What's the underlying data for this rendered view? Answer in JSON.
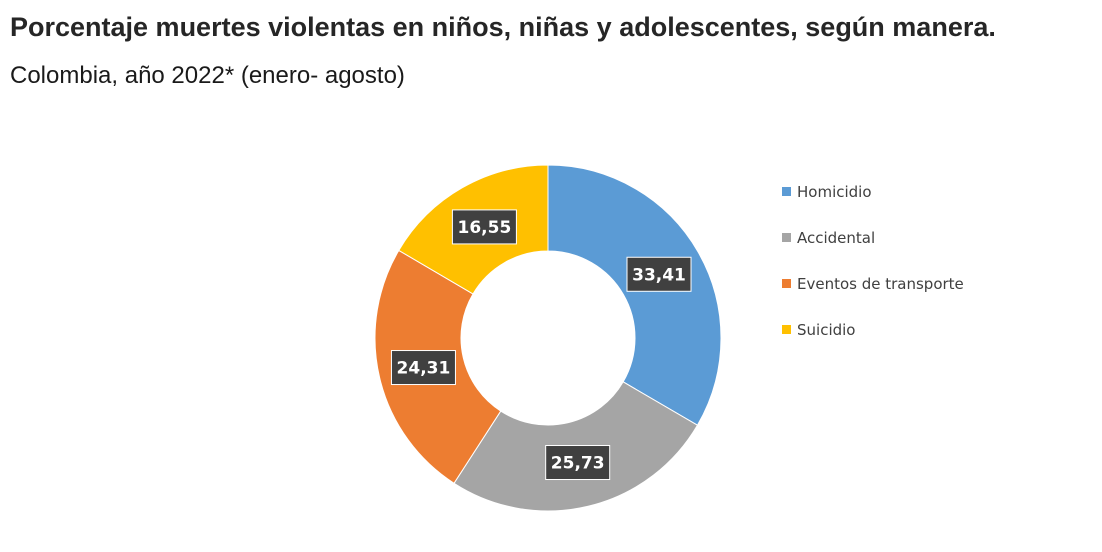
{
  "header": {
    "title": "Porcentaje muertes violentas en niños, niñas y adolescentes, según manera.",
    "subtitle": "Colombia, año 2022* (enero- agosto)"
  },
  "chart_data": {
    "type": "pie",
    "variant": "donut",
    "title": "Porcentaje muertes violentas en niños, niñas y adolescentes, según manera.",
    "subtitle": "Colombia, año 2022* (enero- agosto)",
    "categories": [
      "Homicidio",
      "Accidental",
      "Eventos de transporte",
      "Suicidio"
    ],
    "values": [
      33.41,
      25.73,
      24.31,
      16.55
    ],
    "data_labels": [
      "33,41",
      "25,73",
      "24,31",
      "16,55"
    ],
    "colors": [
      "#5B9BD5",
      "#A5A5A5",
      "#ED7D31",
      "#FFC000"
    ],
    "legend_position": "right",
    "start_angle": "top, clockwise",
    "label_box_color": "#404040"
  }
}
